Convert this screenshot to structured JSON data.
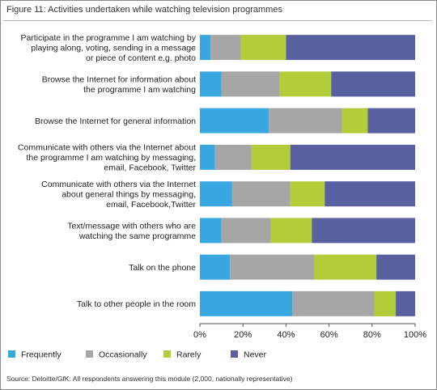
{
  "figure": {
    "title": "Figure 11: Activities undertaken while watching television programmes",
    "source": "Source: Deloitte/GfK: All respondents answering this module (2,000, nationally representative)"
  },
  "colors": {
    "Frequently": "#3aa8e0",
    "Occasionally": "#a6a6a6",
    "Rarely": "#b3cc3a",
    "Never": "#58609f"
  },
  "chart_data": {
    "type": "bar",
    "orientation": "horizontal",
    "stacked": true,
    "percent": true,
    "xlim": [
      0,
      100
    ],
    "x_ticks": [
      "0%",
      "20%",
      "40%",
      "60%",
      "80%",
      "100%"
    ],
    "grid": false,
    "legend_position": "bottom",
    "categories": [
      [
        "Participate in the programme I am watching by",
        "playing along, voting, sending in a message",
        "or piece of content e.g. photo"
      ],
      [
        "Browse the Internet for information about",
        "the programme I am watching"
      ],
      [
        "Browse the Internet for general information"
      ],
      [
        "Communicate with others via the Internet about",
        "the programme I am watching by messaging,",
        "email, Facebook, Twitter"
      ],
      [
        "Communicate with others via the Internet",
        "about general things by messaging,",
        "email, Facebook,Twitter"
      ],
      [
        "Text/message with others who are",
        "watching the same programme"
      ],
      [
        "Talk on the phone"
      ],
      [
        "Talk to other people in the room"
      ]
    ],
    "series": [
      {
        "name": "Frequently",
        "values": [
          5,
          10,
          32,
          7,
          15,
          10,
          14,
          43
        ]
      },
      {
        "name": "Occasionally",
        "values": [
          14,
          27,
          34,
          17,
          27,
          23,
          39,
          38
        ]
      },
      {
        "name": "Rarely",
        "values": [
          21,
          24,
          12,
          18,
          16,
          19,
          29,
          10
        ]
      },
      {
        "name": "Never",
        "values": [
          60,
          39,
          22,
          58,
          42,
          48,
          18,
          9
        ]
      }
    ]
  }
}
